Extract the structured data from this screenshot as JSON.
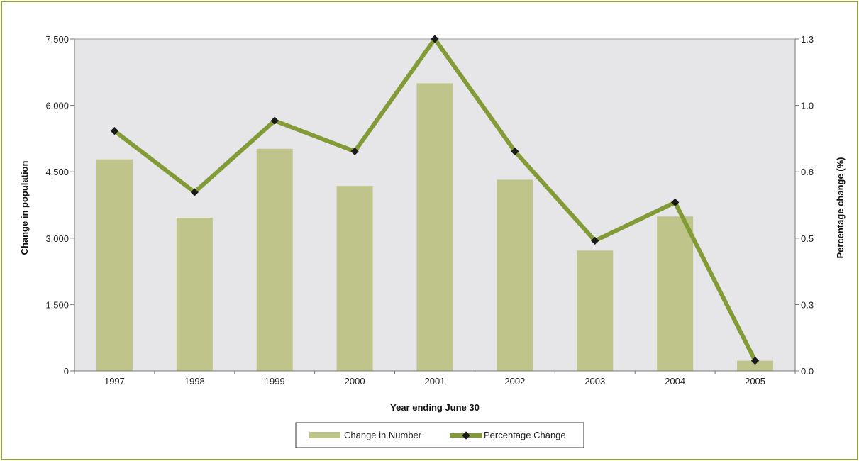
{
  "chart_data": {
    "type": "bar",
    "categories": [
      "1997",
      "1998",
      "1999",
      "2000",
      "2001",
      "2002",
      "2003",
      "2004",
      "2005"
    ],
    "series": [
      {
        "name": "Change in Number",
        "type": "bar",
        "axis": "left",
        "values": [
          4780,
          3460,
          5020,
          4180,
          6500,
          4320,
          2720,
          3490,
          230
        ]
      },
      {
        "name": "Percentage Change",
        "type": "line",
        "axis": "right",
        "values": [
          0.94,
          0.7,
          0.98,
          0.86,
          1.3,
          0.86,
          0.51,
          0.66,
          0.04
        ]
      }
    ],
    "xlabel": "Year ending June 30",
    "ylabel": "Change in population",
    "y2label": "Percentage change (%)",
    "ylim": [
      0,
      7500
    ],
    "y2lim": [
      0,
      1.3
    ],
    "yticks": [
      "0",
      "1,500",
      "3,000",
      "4,500",
      "6,000",
      "7,500"
    ],
    "y2ticks": [
      "0.0",
      "0.3",
      "0.5",
      "0.8",
      "1.0",
      "1.3"
    ],
    "grid": false,
    "legend_position": "bottom",
    "colors": {
      "bar": "#bfc58a",
      "line": "#829b36",
      "marker": "#1a1a1a",
      "plot_background": "#e6e6e8",
      "frame": "#8ea33c"
    }
  }
}
